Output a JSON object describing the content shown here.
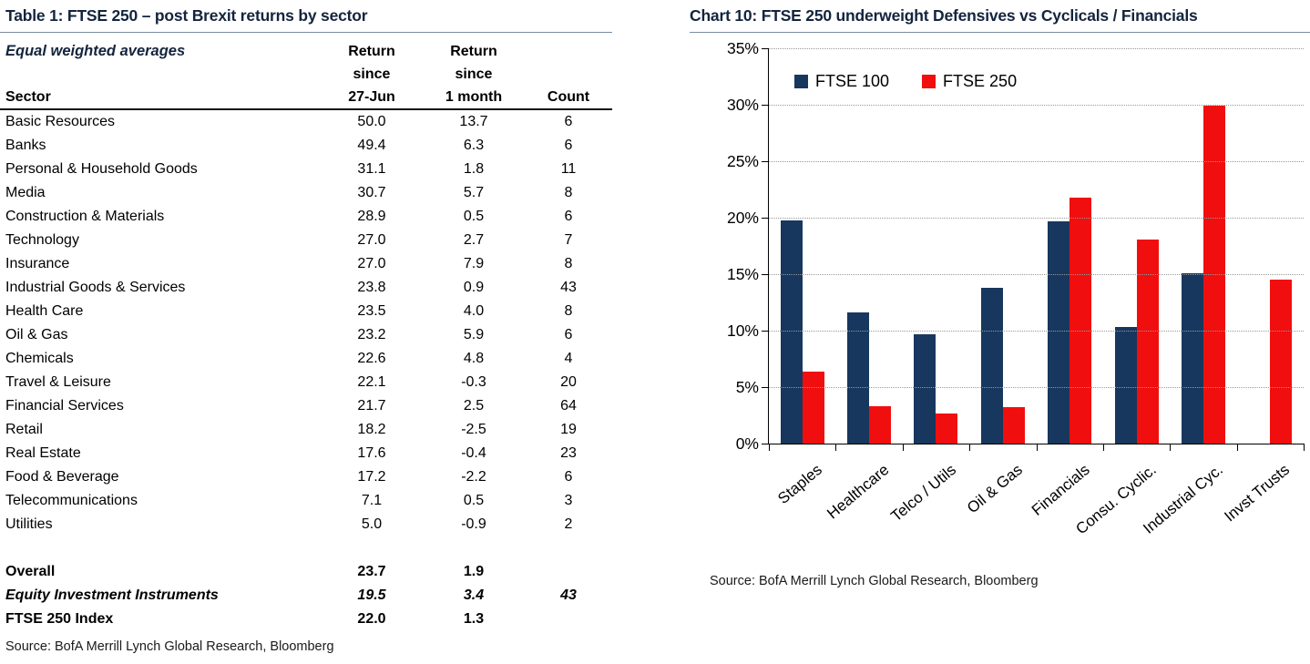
{
  "table": {
    "title": "Table 1: FTSE 250 – post Brexit returns by sector",
    "subtitle": "Equal weighted averages",
    "col_headers": {
      "sector": "Sector",
      "col1": [
        "Return",
        "since",
        "27-Jun"
      ],
      "col2": [
        "Return",
        "since",
        "1 month"
      ],
      "col3": "Count"
    },
    "rows": [
      [
        "Basic Resources",
        "50.0",
        "13.7",
        "6"
      ],
      [
        "Banks",
        "49.4",
        "6.3",
        "6"
      ],
      [
        "Personal & Household Goods",
        "31.1",
        "1.8",
        "11"
      ],
      [
        "Media",
        "30.7",
        "5.7",
        "8"
      ],
      [
        "Construction & Materials",
        "28.9",
        "0.5",
        "6"
      ],
      [
        "Technology",
        "27.0",
        "2.7",
        "7"
      ],
      [
        "Insurance",
        "27.0",
        "7.9",
        "8"
      ],
      [
        "Industrial Goods & Services",
        "23.8",
        "0.9",
        "43"
      ],
      [
        "Health Care",
        "23.5",
        "4.0",
        "8"
      ],
      [
        "Oil & Gas",
        "23.2",
        "5.9",
        "6"
      ],
      [
        "Chemicals",
        "22.6",
        "4.8",
        "4"
      ],
      [
        "Travel & Leisure",
        "22.1",
        "-0.3",
        "20"
      ],
      [
        "Financial Services",
        "21.7",
        "2.5",
        "64"
      ],
      [
        "Retail",
        "18.2",
        "-2.5",
        "19"
      ],
      [
        "Real Estate",
        "17.6",
        "-0.4",
        "23"
      ],
      [
        "Food & Beverage",
        "17.2",
        "-2.2",
        "6"
      ],
      [
        "Telecommunications",
        "7.1",
        "0.5",
        "3"
      ],
      [
        "Utilities",
        "5.0",
        "-0.9",
        "2"
      ]
    ],
    "summary_rows": [
      {
        "cells": [
          "Overall",
          "23.7",
          "1.9",
          ""
        ],
        "style": "bold"
      },
      {
        "cells": [
          "Equity Investment Instruments",
          "19.5",
          "3.4",
          "43"
        ],
        "style": "bold-italic"
      },
      {
        "cells": [
          "FTSE 250 Index",
          "22.0",
          "1.3",
          ""
        ],
        "style": "bold"
      }
    ],
    "source": "Source: BofA Merrill Lynch Global Research, Bloomberg"
  },
  "chart": {
    "title": "Chart 10: FTSE 250 underweight Defensives vs Cyclicals / Financials",
    "source": "Source: BofA Merrill Lynch Global Research, Bloomberg",
    "title_color": "#13243d",
    "axis_color": "#000000",
    "gridline_color": "#999999"
  },
  "chart_data": {
    "type": "bar",
    "title": "Chart 10: FTSE 250 underweight Defensives vs Cyclicals / Financials",
    "categories": [
      "Staples",
      "Healthcare",
      "Telco / Utils",
      "Oil & Gas",
      "Financials",
      "Consu. Cyclic.",
      "Industrial Cyc.",
      "Invst Trusts"
    ],
    "series": [
      {
        "name": "FTSE 100",
        "color": "#17375e",
        "values": [
          19.8,
          11.6,
          9.7,
          13.8,
          19.7,
          10.3,
          15.1,
          0
        ]
      },
      {
        "name": "FTSE 250",
        "color": "#f10e0e",
        "values": [
          6.4,
          3.3,
          2.7,
          3.2,
          21.8,
          18.1,
          29.9,
          14.5
        ]
      }
    ],
    "xlabel": "",
    "ylabel": "",
    "ylim": [
      0,
      35
    ],
    "ytick_step": 5,
    "ytick_format": "percent",
    "grid": "horizontal-dotted",
    "legend_position": "top-left-inside",
    "x_tick_labels_rotation_deg": -40
  }
}
